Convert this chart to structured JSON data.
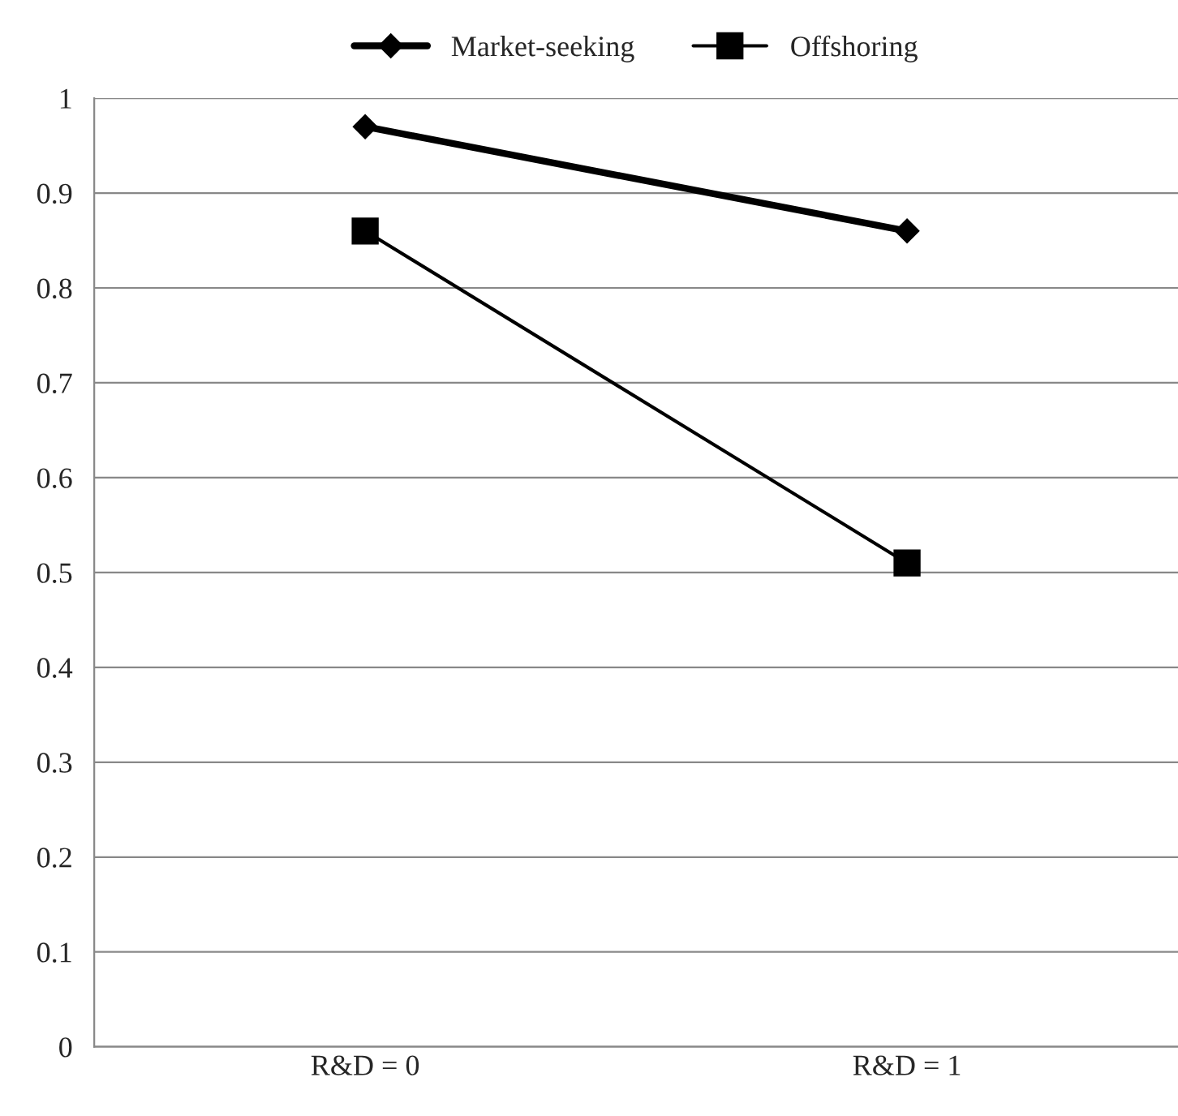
{
  "chart_data": {
    "type": "line",
    "categories": [
      "R&D = 0",
      "R&D = 1"
    ],
    "series": [
      {
        "name": "Market-seeking",
        "color": "#000000",
        "values": [
          0.97,
          0.86
        ],
        "marker": "diamond"
      },
      {
        "name": "Offshoring",
        "color": "#000000",
        "values": [
          0.86,
          0.51
        ],
        "marker": "square"
      }
    ],
    "ylim": [
      0,
      1
    ],
    "yticks": [
      0,
      0.1,
      0.2,
      0.3,
      0.4,
      0.5,
      0.6,
      0.7,
      0.8,
      0.9,
      1
    ],
    "grid": "y",
    "legend": "top",
    "line_style": "solid"
  }
}
